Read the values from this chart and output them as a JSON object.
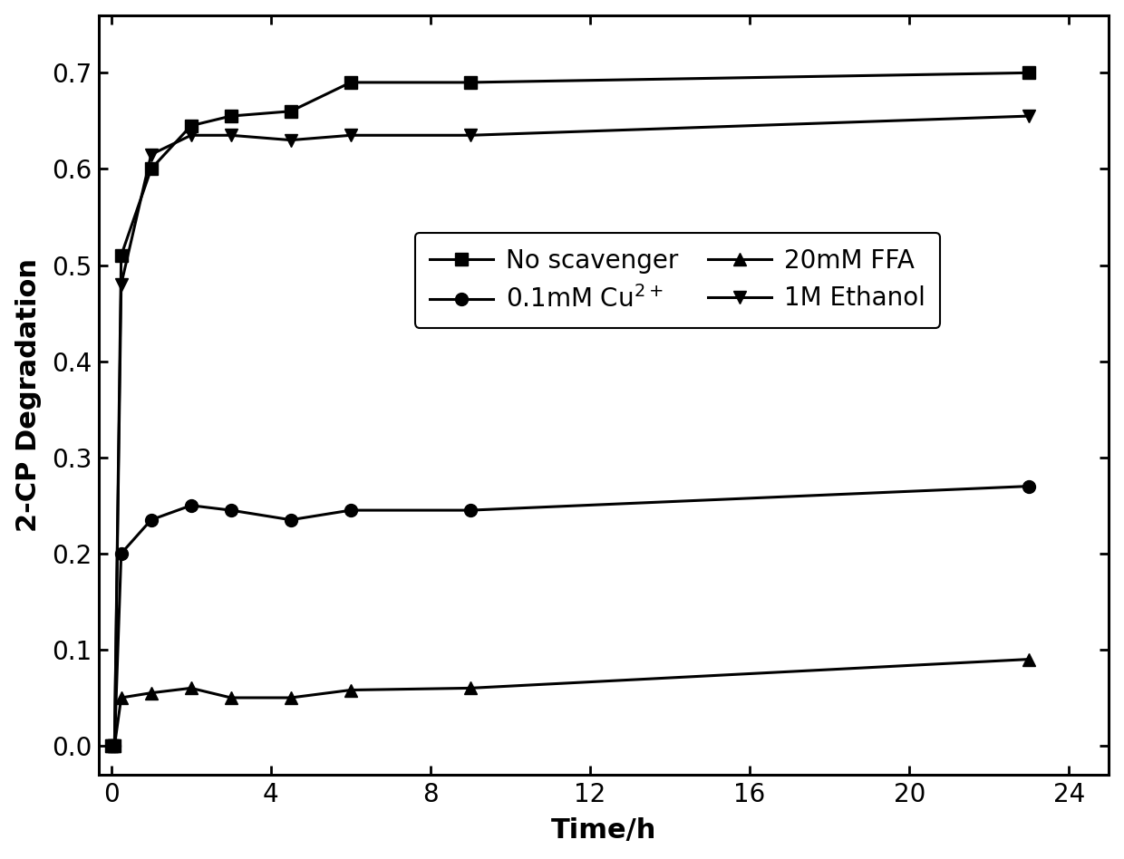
{
  "title": "",
  "xlabel": "Time/h",
  "ylabel": "2-CP Degradation",
  "xlim": [
    -0.3,
    25
  ],
  "ylim": [
    -0.03,
    0.76
  ],
  "xticks": [
    0,
    4,
    8,
    12,
    16,
    20,
    24
  ],
  "yticks": [
    0.0,
    0.1,
    0.2,
    0.3,
    0.4,
    0.5,
    0.6,
    0.7
  ],
  "series": [
    {
      "label": "No scavenger",
      "x": [
        0,
        0.083,
        0.25,
        1,
        2,
        3,
        4.5,
        6,
        9,
        23
      ],
      "y": [
        0.0,
        0.0,
        0.51,
        0.6,
        0.645,
        0.655,
        0.66,
        0.69,
        0.69,
        0.7
      ],
      "marker": "s",
      "color": "#000000",
      "markersize": 10,
      "linewidth": 2.2
    },
    {
      "label": "0.1mM Cu$^{2+}$",
      "x": [
        0,
        0.083,
        0.25,
        1,
        2,
        3,
        4.5,
        6,
        9,
        23
      ],
      "y": [
        0.0,
        0.0,
        0.2,
        0.235,
        0.25,
        0.245,
        0.235,
        0.245,
        0.245,
        0.27
      ],
      "marker": "o",
      "color": "#000000",
      "markersize": 10,
      "linewidth": 2.2
    },
    {
      "label": "20mM FFA",
      "x": [
        0,
        0.083,
        0.25,
        1,
        2,
        3,
        4.5,
        6,
        9,
        23
      ],
      "y": [
        0.0,
        0.0,
        0.05,
        0.055,
        0.06,
        0.05,
        0.05,
        0.058,
        0.06,
        0.09
      ],
      "marker": "^",
      "color": "#000000",
      "markersize": 10,
      "linewidth": 2.2
    },
    {
      "label": "1M Ethanol",
      "x": [
        0,
        0.083,
        0.25,
        1,
        2,
        3,
        4.5,
        6,
        9,
        23
      ],
      "y": [
        0.0,
        0.0,
        0.48,
        0.615,
        0.635,
        0.635,
        0.63,
        0.635,
        0.635,
        0.655
      ],
      "marker": "v",
      "color": "#000000",
      "markersize": 10,
      "linewidth": 2.2
    }
  ],
  "background_color": "#ffffff",
  "font_size": 20,
  "tick_fontsize": 20,
  "label_fontsize": 22
}
